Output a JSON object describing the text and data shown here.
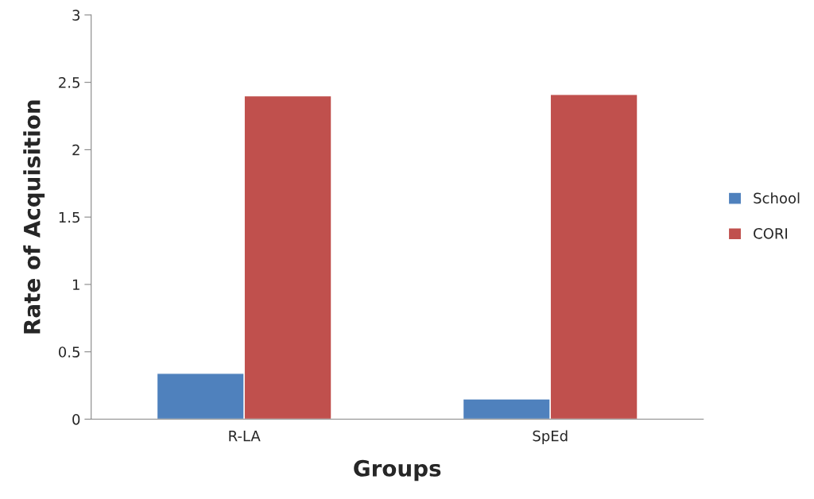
{
  "chart_data": {
    "type": "bar",
    "xlabel": "Groups",
    "ylabel": "Rate of Acquisition",
    "categories": [
      "R-LA",
      "SpEd"
    ],
    "series": [
      {
        "name": "School",
        "color": "#4f81bd",
        "values": [
          0.34,
          0.15
        ]
      },
      {
        "name": "CORI",
        "color": "#c0504d",
        "values": [
          2.4,
          2.41
        ]
      }
    ],
    "ylim": [
      0,
      3
    ],
    "yticks": [
      0,
      0.5,
      1,
      1.5,
      2,
      2.5,
      3
    ],
    "grid": false,
    "legend": "right"
  }
}
